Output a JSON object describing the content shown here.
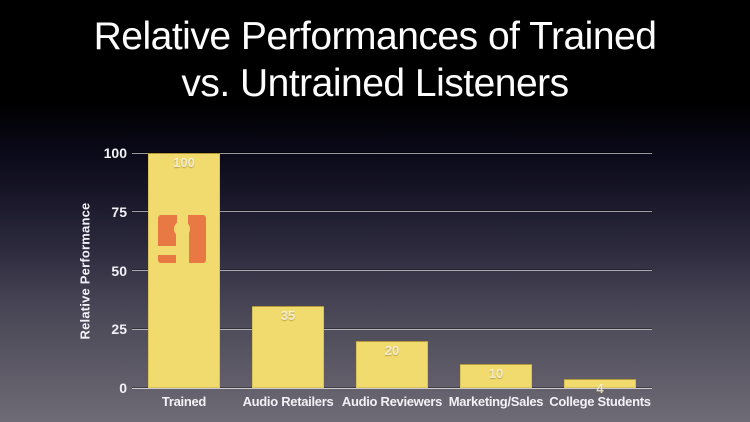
{
  "header": {
    "line1": "Relative Performances of Trained",
    "line2": "vs. Untrained Listeners"
  },
  "chart_data": {
    "type": "bar",
    "title": "Relative Performances of Trained vs. Untrained Listeners",
    "categories": [
      "Trained",
      "Audio Retailers",
      "Audio Reviewers",
      "Marketing/Sales",
      "College Students"
    ],
    "values": [
      100,
      35,
      20,
      10,
      4
    ],
    "value_labels": [
      "100",
      "35",
      "20",
      "10",
      "4"
    ],
    "xlabel": "",
    "ylabel": "Relative Performance",
    "ylim": [
      0,
      100
    ],
    "yticks": [
      0,
      25,
      50,
      75,
      100
    ],
    "grid": true,
    "legend": false,
    "bar_color": "#F1DB6E",
    "gridline_color": "rgba(255,255,255,0.58)",
    "text_color": "#F2F1F6",
    "value_label_color": "rgba(255,255,255,0.72)",
    "logo": {
      "icon": "harman-h-logo",
      "on_category": "Trained",
      "color": "#E87945"
    }
  },
  "background": {
    "top_color": "#000000",
    "bottom_color": "#6E6B76"
  }
}
